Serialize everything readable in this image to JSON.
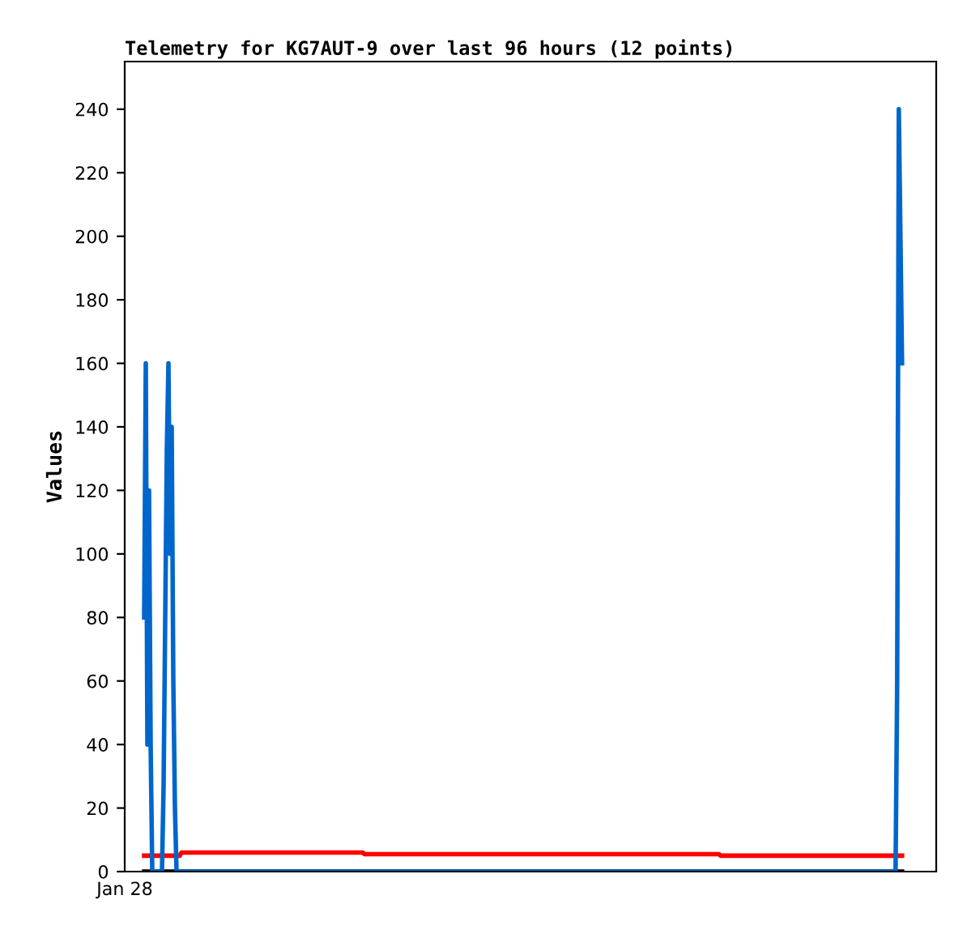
{
  "chart_data": {
    "type": "line",
    "title": "Telemetry for KG7AUT-9 over last 96 hours (12 points)",
    "ylabel": "Values",
    "annotations": [
      "Jan 28"
    ],
    "ylim": [
      0,
      255
    ],
    "yticks": [
      0,
      20,
      40,
      60,
      80,
      100,
      120,
      140,
      160,
      180,
      200,
      220,
      240
    ],
    "grid": false,
    "legend": false,
    "categories": [
      null,
      null,
      null,
      null,
      null,
      null,
      null,
      null,
      null,
      null,
      null,
      null,
      null,
      null,
      null,
      null,
      null,
      null,
      null,
      null,
      null,
      null,
      null,
      null,
      null,
      null,
      null,
      null,
      null,
      null,
      null,
      null,
      null,
      null,
      null,
      null,
      null,
      null,
      null,
      null,
      null,
      null,
      null,
      null,
      null,
      null,
      null,
      null,
      null,
      null,
      null,
      null,
      null,
      null,
      null,
      null,
      null,
      null,
      null,
      null,
      null,
      null,
      null,
      null,
      null,
      null,
      null,
      null,
      null,
      null,
      null,
      null,
      null,
      null,
      null,
      null,
      null,
      null,
      null,
      null,
      null,
      null,
      null,
      null,
      null,
      null,
      null,
      null,
      null,
      null,
      null,
      null,
      null,
      null,
      null,
      null,
      null,
      null,
      null,
      null,
      null,
      null,
      null,
      null,
      null,
      null,
      null,
      null,
      null,
      null,
      null,
      null,
      null,
      null,
      null,
      null,
      null,
      null,
      null,
      null,
      null,
      null,
      null,
      null,
      null,
      null,
      null,
      null,
      null,
      null,
      null,
      null,
      null,
      null,
      null,
      null,
      null,
      null,
      null,
      null,
      null,
      null,
      null,
      null,
      null,
      null,
      null,
      null,
      null,
      null,
      null,
      null,
      null,
      null,
      null,
      null,
      null,
      null,
      null,
      null,
      null,
      null,
      null,
      null,
      null,
      null,
      null,
      null,
      null,
      null,
      null,
      null,
      null,
      null,
      null,
      null,
      null,
      null,
      null,
      null,
      null,
      null,
      null,
      null,
      null,
      null,
      null,
      null,
      null,
      null,
      null,
      null,
      null,
      null,
      null,
      null,
      null,
      null,
      null,
      null,
      null,
      null,
      null,
      null,
      null,
      null,
      null,
      null,
      null,
      null,
      null,
      null,
      null,
      null,
      null,
      null,
      null,
      null,
      null,
      null,
      null,
      null,
      null,
      null,
      null,
      null,
      null,
      null,
      null,
      null,
      null,
      null,
      null,
      null,
      null,
      null,
      null,
      null,
      null,
      null,
      null,
      null,
      null,
      null,
      null,
      null,
      null,
      null,
      null,
      null,
      null,
      null,
      null,
      null,
      null,
      null,
      null,
      null,
      null,
      null,
      null,
      null,
      null,
      null,
      null,
      null,
      null,
      null,
      null,
      null,
      null,
      null,
      null,
      null,
      null,
      null,
      null,
      null,
      null,
      null,
      null,
      null,
      null,
      null,
      null,
      null,
      null,
      null,
      null,
      null,
      null,
      null,
      null,
      null,
      null,
      null,
      null,
      null,
      null,
      null,
      null,
      null,
      null,
      null,
      null,
      null,
      null,
      null,
      null,
      null,
      null,
      null,
      null,
      null,
      null,
      null,
      null,
      null,
      null,
      null,
      null,
      null,
      null,
      null,
      null,
      null,
      null,
      null,
      null,
      null,
      null,
      null,
      null,
      null,
      null,
      null,
      null,
      null,
      null,
      null,
      null,
      null,
      null,
      null,
      null,
      null,
      null,
      null,
      null,
      null,
      null,
      null,
      null,
      null,
      null,
      null,
      null,
      null,
      null,
      null,
      null,
      null,
      null,
      null,
      null,
      null,
      null,
      null,
      null,
      null,
      null,
      null,
      null,
      null,
      null,
      null,
      null,
      null,
      null,
      null,
      null,
      null,
      null,
      null,
      null,
      null,
      null,
      null,
      null,
      null,
      null,
      null,
      null,
      null,
      null,
      null,
      null,
      null,
      null,
      null,
      null,
      null,
      null,
      null,
      null,
      null,
      null,
      null,
      null,
      null,
      null,
      null,
      null,
      null,
      null,
      null,
      null,
      null,
      null,
      null,
      null,
      null,
      null,
      null,
      null,
      null,
      null,
      null,
      null,
      null,
      null,
      null,
      null,
      null,
      null,
      null,
      null,
      null,
      null,
      null,
      null,
      null,
      null,
      null,
      null,
      null,
      null,
      null,
      null,
      null,
      null,
      null,
      null,
      null,
      null,
      null,
      null,
      null,
      null,
      null,
      null,
      null,
      null,
      null,
      null,
      null,
      null,
      null,
      null
    ],
    "series": [
      {
        "color": "#000000",
        "values": [
          0,
          0,
          0,
          0,
          0,
          0,
          0,
          0,
          0,
          0,
          0,
          0,
          0,
          0,
          0,
          0,
          0,
          0,
          0,
          0,
          0,
          0,
          0,
          0,
          0,
          0,
          0,
          0,
          0,
          0,
          0,
          0,
          0,
          0,
          0,
          0,
          0,
          0,
          0,
          0,
          0,
          0,
          0,
          0,
          0,
          0,
          0,
          0,
          0,
          0,
          0,
          0,
          0,
          0,
          0,
          0,
          0,
          0,
          0,
          0,
          0,
          0,
          0,
          0,
          0,
          0,
          0,
          0,
          0,
          0,
          0,
          0,
          0,
          0,
          0,
          0,
          0,
          0,
          0,
          0,
          0,
          0,
          0,
          0,
          0,
          0,
          0,
          0,
          0,
          0,
          0,
          0,
          0,
          0,
          0,
          0,
          0,
          0,
          0,
          0,
          0,
          0,
          0,
          0,
          0,
          0,
          0,
          0,
          0,
          0,
          0,
          0,
          0,
          0,
          0,
          0,
          0,
          0,
          0,
          0,
          0,
          0,
          0,
          0,
          0,
          0,
          0,
          0,
          0,
          0,
          0,
          0,
          0,
          0,
          0,
          0,
          0,
          0,
          0,
          0,
          0,
          0,
          0,
          0,
          0,
          0,
          0,
          0,
          0,
          0,
          0,
          0,
          0,
          0,
          0,
          0,
          0,
          0,
          0,
          0,
          0,
          0,
          0,
          0,
          0,
          0,
          0,
          0,
          0,
          0,
          0,
          0,
          0,
          0,
          0,
          0,
          0,
          0,
          0,
          0,
          0,
          0,
          0,
          0,
          0,
          0,
          0,
          0,
          0,
          0,
          0,
          0,
          0,
          0,
          0,
          0,
          0,
          0,
          0,
          0,
          0,
          0,
          0,
          0,
          0,
          0,
          0,
          0,
          0,
          0,
          0,
          0,
          0,
          0,
          0,
          0,
          0,
          0,
          0,
          0,
          0,
          0,
          0,
          0,
          0,
          0,
          0,
          0,
          0,
          0,
          0,
          0,
          0,
          0,
          0,
          0,
          0,
          0,
          0,
          0,
          0,
          0,
          0,
          0,
          0,
          0,
          0,
          0,
          0,
          0,
          0,
          0,
          0,
          0,
          0,
          0,
          0,
          0,
          0,
          0,
          0,
          0,
          0,
          0,
          0,
          0,
          0,
          0,
          0,
          0,
          0,
          0,
          0,
          0,
          0,
          0,
          0,
          0,
          0,
          0,
          0,
          0,
          0,
          0,
          0,
          0,
          0,
          0,
          0,
          0,
          0,
          0,
          0,
          0,
          0,
          0,
          0,
          0,
          0,
          0,
          0,
          0,
          0,
          0,
          0,
          0,
          0,
          0,
          0,
          0,
          0,
          0,
          0,
          0,
          0,
          0,
          0,
          0,
          0,
          0,
          0,
          0,
          0,
          0,
          0,
          0,
          0,
          0,
          0,
          0,
          0,
          0,
          0,
          0,
          0,
          0,
          0,
          0,
          0,
          0,
          0,
          0,
          0,
          0,
          0,
          0,
          0,
          0,
          0,
          0,
          0,
          0,
          0,
          0,
          0,
          0,
          0,
          0,
          0,
          0,
          0,
          0,
          0,
          0,
          0,
          0,
          0,
          0,
          0,
          0,
          0,
          0,
          0,
          0,
          0,
          0,
          0,
          0,
          0,
          0,
          0,
          0,
          0,
          0,
          0,
          0,
          0,
          0,
          0,
          0,
          0,
          0,
          0,
          0,
          0,
          0,
          0,
          0,
          0,
          0,
          0,
          0,
          0,
          0,
          0,
          0,
          0,
          0,
          0,
          0,
          0,
          0,
          0,
          0,
          0,
          0,
          0,
          0,
          0,
          0,
          0,
          0,
          0,
          0,
          0,
          0,
          0,
          0,
          0,
          0,
          0,
          0,
          0,
          0,
          0,
          0,
          0,
          0,
          0,
          0,
          0,
          0,
          0,
          0,
          0,
          0,
          0,
          0,
          0,
          0,
          0,
          0,
          0,
          0,
          0,
          0,
          0,
          0,
          0,
          0,
          0,
          0,
          0,
          0,
          0,
          0,
          0,
          0,
          0
        ]
      },
      {
        "color": "#ff0000",
        "values": [
          5,
          5,
          5,
          5,
          5,
          5,
          5,
          5,
          5,
          5,
          5,
          5,
          5,
          5,
          5,
          5,
          5,
          5,
          5,
          5,
          5,
          5,
          5,
          6,
          6,
          6,
          6,
          6,
          6,
          6,
          6,
          6,
          6,
          6,
          6,
          6,
          6,
          6,
          6,
          6,
          6,
          6,
          6,
          6,
          6,
          6,
          6,
          6,
          6,
          6,
          6,
          6,
          6,
          6,
          6,
          6,
          6,
          6,
          6,
          6,
          6,
          6,
          6,
          6,
          6,
          6,
          6,
          6,
          6,
          6,
          6,
          6,
          6,
          6,
          6,
          6,
          6,
          6,
          6,
          6,
          6,
          6,
          6,
          6,
          6,
          6,
          6,
          6,
          6,
          6,
          6,
          6,
          6,
          6,
          6,
          6,
          6,
          6,
          6,
          6,
          6,
          6,
          6,
          6,
          6,
          6,
          6,
          6,
          6,
          6,
          6,
          6,
          6,
          6,
          6,
          6,
          6,
          6,
          6,
          6,
          6,
          6,
          6,
          6,
          6,
          6,
          6,
          6,
          6,
          6,
          6,
          6,
          6,
          6,
          6,
          6,
          5.5,
          5.5,
          5.5,
          5.5,
          5.5,
          5.5,
          5.5,
          5.5,
          5.5,
          5.5,
          5.5,
          5.5,
          5.5,
          5.5,
          5.5,
          5.5,
          5.5,
          5.5,
          5.5,
          5.5,
          5.5,
          5.5,
          5.5,
          5.5,
          5.5,
          5.5,
          5.5,
          5.5,
          5.5,
          5.5,
          5.5,
          5.5,
          5.5,
          5.5,
          5.5,
          5.5,
          5.5,
          5.5,
          5.5,
          5.5,
          5.5,
          5.5,
          5.5,
          5.5,
          5.5,
          5.5,
          5.5,
          5.5,
          5.5,
          5.5,
          5.5,
          5.5,
          5.5,
          5.5,
          5.5,
          5.5,
          5.5,
          5.5,
          5.5,
          5.5,
          5.5,
          5.5,
          5.5,
          5.5,
          5.5,
          5.5,
          5.5,
          5.5,
          5.5,
          5.5,
          5.5,
          5.5,
          5.5,
          5.5,
          5.5,
          5.5,
          5.5,
          5.5,
          5.5,
          5.5,
          5.5,
          5.5,
          5.5,
          5.5,
          5.5,
          5.5,
          5.5,
          5.5,
          5.5,
          5.5,
          5.5,
          5.5,
          5.5,
          5.5,
          5.5,
          5.5,
          5.5,
          5.5,
          5.5,
          5.5,
          5.5,
          5.5,
          5.5,
          5.5,
          5.5,
          5.5,
          5.5,
          5.5,
          5.5,
          5.5,
          5.5,
          5.5,
          5.5,
          5.5,
          5.5,
          5.5,
          5.5,
          5.5,
          5.5,
          5.5,
          5.5,
          5.5,
          5.5,
          5.5,
          5.5,
          5.5,
          5.5,
          5.5,
          5.5,
          5.5,
          5.5,
          5.5,
          5.5,
          5.5,
          5.5,
          5.5,
          5.5,
          5.5,
          5.5,
          5.5,
          5.5,
          5.5,
          5.5,
          5.5,
          5.5,
          5.5,
          5.5,
          5.5,
          5.5,
          5.5,
          5.5,
          5.5,
          5.5,
          5.5,
          5.5,
          5.5,
          5.5,
          5.5,
          5.5,
          5.5,
          5.5,
          5.5,
          5.5,
          5.5,
          5.5,
          5.5,
          5.5,
          5.5,
          5.5,
          5.5,
          5.5,
          5.5,
          5.5,
          5.5,
          5.5,
          5.5,
          5.5,
          5.5,
          5.5,
          5.5,
          5.5,
          5.5,
          5.5,
          5.5,
          5.5,
          5.5,
          5.5,
          5.5,
          5.5,
          5.5,
          5.5,
          5.5,
          5.5,
          5.5,
          5.5,
          5.5,
          5.5,
          5.5,
          5.5,
          5.5,
          5.5,
          5.5,
          5.5,
          5.5,
          5.5,
          5.5,
          5.5,
          5.5,
          5.5,
          5.5,
          5.5,
          5.5,
          5.5,
          5.5,
          5.5,
          5.5,
          5.5,
          5.5,
          5.5,
          5.5,
          5,
          5,
          5,
          5,
          5,
          5,
          5,
          5,
          5,
          5,
          5,
          5,
          5,
          5,
          5,
          5,
          5,
          5,
          5,
          5,
          5,
          5,
          5,
          5,
          5,
          5,
          5,
          5,
          5,
          5,
          5,
          5,
          5,
          5,
          5,
          5,
          5,
          5,
          5,
          5,
          5,
          5,
          5,
          5,
          5,
          5,
          5,
          5,
          5,
          5,
          5,
          5,
          5,
          5,
          5,
          5,
          5,
          5,
          5,
          5,
          5,
          5,
          5,
          5,
          5,
          5,
          5,
          5,
          5,
          5,
          5,
          5,
          5,
          5,
          5,
          5,
          5,
          5,
          5,
          5,
          5,
          5,
          5,
          5,
          5,
          5,
          5,
          5,
          5,
          5,
          5,
          5,
          5,
          5,
          5,
          5,
          5,
          5,
          5,
          5,
          5,
          5,
          5,
          5,
          5,
          5,
          5,
          5,
          5,
          5,
          5,
          5,
          5
        ]
      },
      {
        "color": "#0066cc",
        "values": [
          80,
          160,
          40,
          120,
          40,
          0,
          0,
          0,
          0,
          0,
          0,
          0,
          27,
          80,
          133,
          160,
          100,
          140,
          60,
          20,
          0,
          0,
          0,
          0,
          0,
          0,
          0,
          0,
          0,
          0,
          0,
          0,
          0,
          0,
          0,
          0,
          0,
          0,
          0,
          0,
          0,
          0,
          0,
          0,
          0,
          0,
          0,
          0,
          0,
          0,
          0,
          0,
          0,
          0,
          0,
          0,
          0,
          0,
          0,
          0,
          0,
          0,
          0,
          0,
          0,
          0,
          0,
          0,
          0,
          0,
          0,
          0,
          0,
          0,
          0,
          0,
          0,
          0,
          0,
          0,
          0,
          0,
          0,
          0,
          0,
          0,
          0,
          0,
          0,
          0,
          0,
          0,
          0,
          0,
          0,
          0,
          0,
          0,
          0,
          0,
          0,
          0,
          0,
          0,
          0,
          0,
          0,
          0,
          0,
          0,
          0,
          0,
          0,
          0,
          0,
          0,
          0,
          0,
          0,
          0,
          0,
          0,
          0,
          0,
          0,
          0,
          0,
          0,
          0,
          0,
          0,
          0,
          0,
          0,
          0,
          0,
          0,
          0,
          0,
          0,
          0,
          0,
          0,
          0,
          0,
          0,
          0,
          0,
          0,
          0,
          0,
          0,
          0,
          0,
          0,
          0,
          0,
          0,
          0,
          0,
          0,
          0,
          0,
          0,
          0,
          0,
          0,
          0,
          0,
          0,
          0,
          0,
          0,
          0,
          0,
          0,
          0,
          0,
          0,
          0,
          0,
          0,
          0,
          0,
          0,
          0,
          0,
          0,
          0,
          0,
          0,
          0,
          0,
          0,
          0,
          0,
          0,
          0,
          0,
          0,
          0,
          0,
          0,
          0,
          0,
          0,
          0,
          0,
          0,
          0,
          0,
          0,
          0,
          0,
          0,
          0,
          0,
          0,
          0,
          0,
          0,
          0,
          0,
          0,
          0,
          0,
          0,
          0,
          0,
          0,
          0,
          0,
          0,
          0,
          0,
          0,
          0,
          0,
          0,
          0,
          0,
          0,
          0,
          0,
          0,
          0,
          0,
          0,
          0,
          0,
          0,
          0,
          0,
          0,
          0,
          0,
          0,
          0,
          0,
          0,
          0,
          0,
          0,
          0,
          0,
          0,
          0,
          0,
          0,
          0,
          0,
          0,
          0,
          0,
          0,
          0,
          0,
          0,
          0,
          0,
          0,
          0,
          0,
          0,
          0,
          0,
          0,
          0,
          0,
          0,
          0,
          0,
          0,
          0,
          0,
          0,
          0,
          0,
          0,
          0,
          0,
          0,
          0,
          0,
          0,
          0,
          0,
          0,
          0,
          0,
          0,
          0,
          0,
          0,
          0,
          0,
          0,
          0,
          0,
          0,
          0,
          0,
          0,
          0,
          0,
          0,
          0,
          0,
          0,
          0,
          0,
          0,
          0,
          0,
          0,
          0,
          0,
          0,
          0,
          0,
          0,
          0,
          0,
          0,
          0,
          0,
          0,
          0,
          0,
          0,
          0,
          0,
          0,
          0,
          0,
          0,
          0,
          0,
          0,
          0,
          0,
          0,
          0,
          0,
          0,
          0,
          0,
          0,
          0,
          0,
          0,
          0,
          0,
          0,
          0,
          0,
          0,
          0,
          0,
          0,
          0,
          0,
          0,
          0,
          0,
          0,
          0,
          0,
          0,
          0,
          0,
          0,
          0,
          0,
          0,
          0,
          0,
          0,
          0,
          0,
          0,
          0,
          0,
          0,
          0,
          0,
          0,
          0,
          0,
          0,
          0,
          0,
          0,
          0,
          0,
          0,
          0,
          0,
          0,
          0,
          0,
          0,
          0,
          0,
          0,
          0,
          0,
          0,
          0,
          0,
          0,
          0,
          0,
          0,
          0,
          0,
          0,
          0,
          0,
          0,
          0,
          0,
          0,
          0,
          0,
          0,
          0,
          0,
          0,
          0,
          0,
          0,
          0,
          0,
          0,
          0,
          0,
          0,
          0,
          0,
          0,
          0,
          0,
          0,
          0,
          60,
          240,
          200,
          160
        ]
      }
    ]
  }
}
